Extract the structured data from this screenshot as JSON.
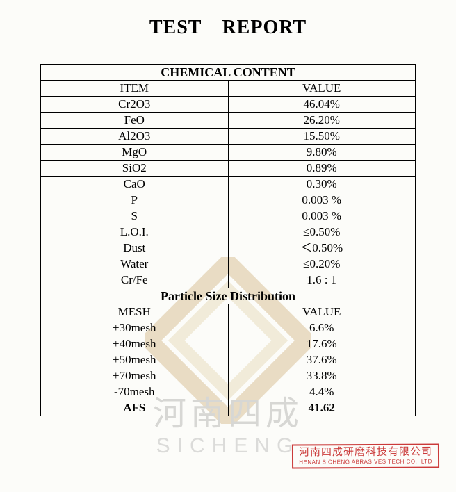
{
  "title": "TEST REPORT",
  "watermark": {
    "cn": "河南四成",
    "en": "SICHENG",
    "diamond_outer": "#b98c3e",
    "diamond_inner": "#d8c28a"
  },
  "sections": {
    "chemical": {
      "heading": "CHEMICAL CONTENT",
      "col1": "ITEM",
      "col2": "VALUE",
      "rows": [
        {
          "item": "Cr2O3",
          "value": "46.04%"
        },
        {
          "item": "FeO",
          "value": "26.20%"
        },
        {
          "item": "Al2O3",
          "value": "15.50%"
        },
        {
          "item": "MgO",
          "value": "9.80%"
        },
        {
          "item": "SiO2",
          "value": "0.89%"
        },
        {
          "item": "CaO",
          "value": "0.30%"
        },
        {
          "item": "P",
          "value": "0.003 %"
        },
        {
          "item": "S",
          "value": "0.003 %"
        },
        {
          "item": "L.O.I.",
          "value": "≤0.50%"
        },
        {
          "item": "Dust",
          "value": "＜0.50%"
        },
        {
          "item": "Water",
          "value": "≤0.20%"
        },
        {
          "item": "Cr/Fe",
          "value": "1.6 : 1"
        }
      ]
    },
    "particle": {
      "heading": "Particle Size Distribution",
      "col1": "MESH",
      "col2": "VALUE",
      "rows": [
        {
          "item": "+30mesh",
          "value": "6.6%"
        },
        {
          "item": "+40mesh",
          "value": "17.6%"
        },
        {
          "item": "+50mesh",
          "value": "37.6%"
        },
        {
          "item": "+70mesh",
          "value": "33.8%"
        },
        {
          "item": "-70mesh",
          "value": "4.4%"
        }
      ],
      "summary": {
        "item": "AFS",
        "value": "41.62"
      }
    }
  },
  "stamp": {
    "cn": "河南四成研磨科技有限公司",
    "en": "HENAN SICHENG ABRASIVES TECH CO., LTD"
  }
}
